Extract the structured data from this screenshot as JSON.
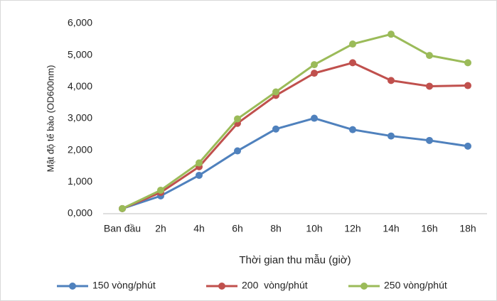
{
  "chart_data": {
    "type": "line",
    "y_label": "Mật độ tế bào (OD600nm)",
    "x_label": "Thời gian thu mẫu (giờ)",
    "categories": [
      "Ban đầu",
      "2h",
      "4h",
      "6h",
      "8h",
      "10h",
      "12h",
      "14h",
      "16h",
      "18h"
    ],
    "series": [
      {
        "name": "150 vòng/phút",
        "color": "#4f81bd",
        "values": [
          0.16,
          0.56,
          1.21,
          1.98,
          2.67,
          3.01,
          2.65,
          2.45,
          2.31,
          2.13
        ]
      },
      {
        "name": "200  vòng/phút",
        "color": "#c0504d",
        "values": [
          0.16,
          0.67,
          1.48,
          2.85,
          3.73,
          4.43,
          4.76,
          4.2,
          4.02,
          4.04
        ]
      },
      {
        "name": "250 vòng/phút",
        "color": "#9bbb59",
        "values": [
          0.16,
          0.74,
          1.6,
          2.99,
          3.84,
          4.7,
          5.35,
          5.66,
          4.99,
          4.76
        ]
      }
    ],
    "ylim": [
      0,
      6
    ],
    "yticks": [
      {
        "value": 0,
        "label": "0,000"
      },
      {
        "value": 1,
        "label": "1,000"
      },
      {
        "value": 2,
        "label": "2,000"
      },
      {
        "value": 3,
        "label": "3,000"
      },
      {
        "value": 4,
        "label": "4,000"
      },
      {
        "value": 5,
        "label": "5,000"
      },
      {
        "value": 6,
        "label": "6,000"
      }
    ],
    "grid": false,
    "legend": "bottom"
  }
}
